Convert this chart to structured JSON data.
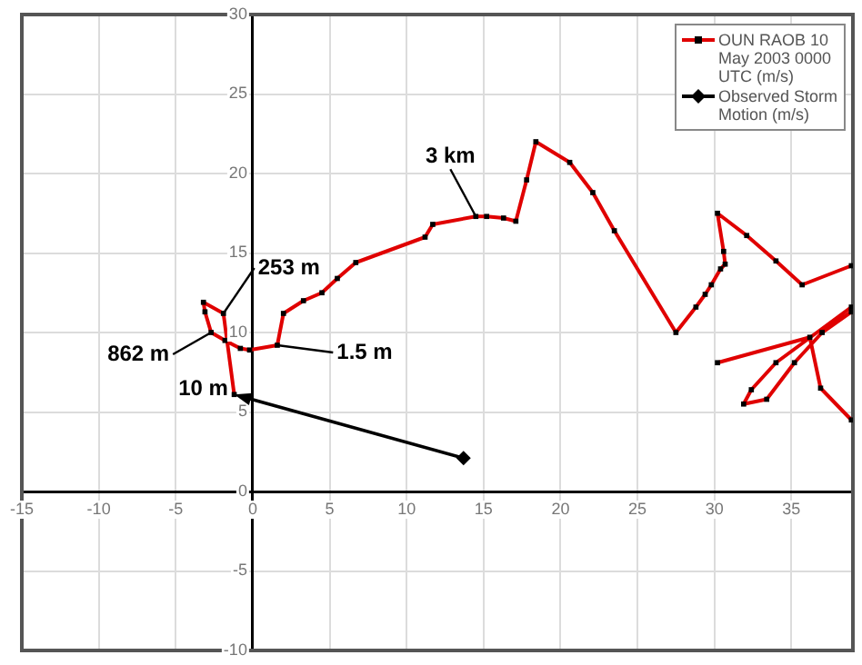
{
  "chart_data": {
    "type": "line",
    "xlim": [
      -15,
      39
    ],
    "ylim": [
      -10,
      30
    ],
    "xticks": [
      -15,
      -10,
      -5,
      0,
      5,
      10,
      15,
      20,
      25,
      30,
      35
    ],
    "yticks": [
      -10,
      -5,
      0,
      5,
      10,
      15,
      20,
      25,
      30
    ],
    "grid": true,
    "legend": "top right",
    "series": [
      {
        "name": "OUN RAOB 10 May 2003 0000 UTC (m/s)",
        "color": "#e00000",
        "marker": "square",
        "x": [
          -1.2,
          -1.9,
          -3.2,
          -3.1,
          -2.7,
          -1.8,
          -0.8,
          -0.2,
          1.6,
          2.0,
          3.3,
          4.5,
          5.5,
          6.7,
          11.2,
          11.7,
          14.5,
          15.2,
          16.3,
          17.1,
          17.8,
          18.4,
          20.6,
          22.1,
          23.5,
          27.5,
          28.8,
          29.4,
          29.8,
          30.4,
          30.7,
          30.6,
          30.2,
          32.1,
          34.0,
          35.7,
          38.9,
          null,
          38.9,
          34.0,
          32.4,
          31.9,
          33.4,
          35.2,
          37.0,
          38.9,
          null,
          30.2,
          36.2,
          36.9,
          38.9
        ],
        "values": [
          6.1,
          11.2,
          11.9,
          11.3,
          10.0,
          9.5,
          9.0,
          8.9,
          9.2,
          11.2,
          12.0,
          12.5,
          13.4,
          14.4,
          16.0,
          16.8,
          17.3,
          17.3,
          17.2,
          17.0,
          19.6,
          22.0,
          20.7,
          18.8,
          16.4,
          10.0,
          11.6,
          12.4,
          13.0,
          14.0,
          14.3,
          15.1,
          17.5,
          16.1,
          14.5,
          13.0,
          14.2,
          null,
          11.6,
          8.1,
          6.4,
          5.5,
          5.8,
          8.1,
          10.0,
          11.3,
          null,
          8.1,
          9.7,
          6.5,
          4.5
        ]
      },
      {
        "name": "Observed Storm Motion (m/s)",
        "color": "#000000",
        "marker": "diamond",
        "x": [
          13.7
        ],
        "values": [
          2.1
        ]
      }
    ],
    "annotations": [
      {
        "text": "3 km",
        "x": 14.5,
        "y": 17.3
      },
      {
        "text": "253 m",
        "x": -1.9,
        "y": 11.2
      },
      {
        "text": "862 m",
        "x": -2.7,
        "y": 10.0
      },
      {
        "text": "1.5 m",
        "x": 1.6,
        "y": 9.2
      },
      {
        "text": "10 m",
        "x": -1.2,
        "y": 6.1
      }
    ]
  }
}
